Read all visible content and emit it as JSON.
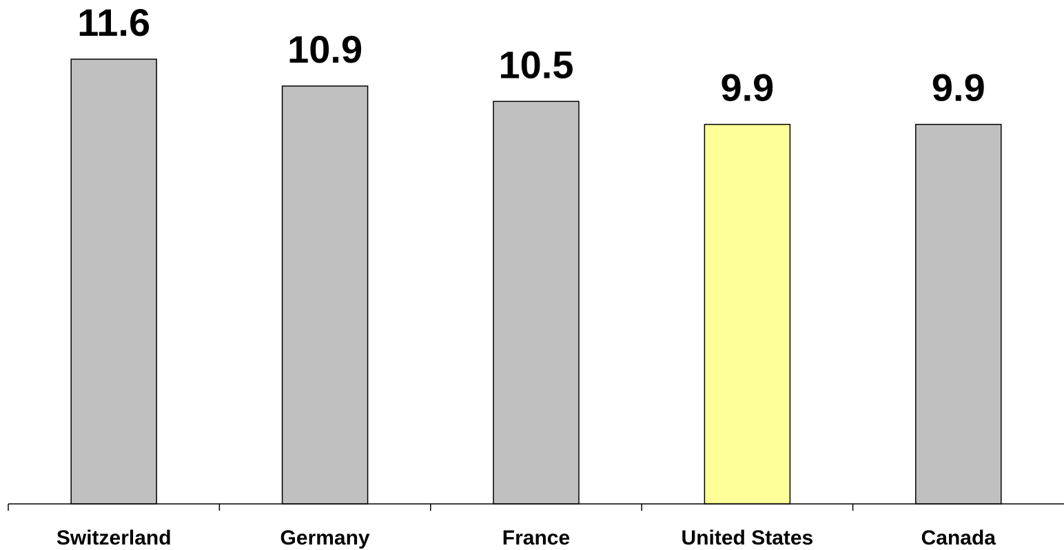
{
  "chart_data": {
    "type": "bar",
    "categories": [
      "Switzerland",
      "Germany",
      "France",
      "United States",
      "Canada"
    ],
    "values": [
      11.6,
      10.9,
      10.5,
      9.9,
      9.9
    ],
    "data_labels": [
      "11.6",
      "10.9",
      "10.5",
      "9.9",
      "9.9"
    ],
    "title": "",
    "xlabel": "",
    "ylabel": "",
    "ylim": [
      0,
      11.6
    ],
    "grid": false,
    "legend": "none",
    "bar_colors": [
      "#c0c0c0",
      "#c0c0c0",
      "#c0c0c0",
      "#ffff99",
      "#c0c0c0"
    ],
    "bar_edge_color": "#000000"
  }
}
